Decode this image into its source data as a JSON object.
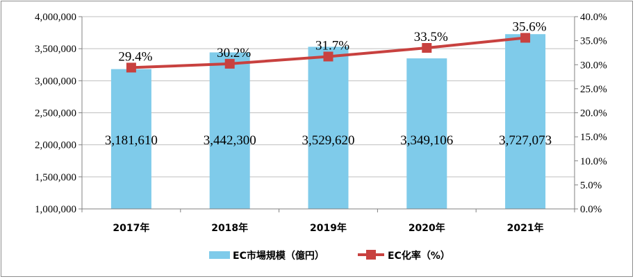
{
  "chart_data": {
    "type": "bar",
    "categories": [
      "2017年",
      "2018年",
      "2019年",
      "2020年",
      "2021年"
    ],
    "series": [
      {
        "name": "EC市場規模（億円）",
        "type": "bar",
        "axis": "left",
        "values": [
          3181610,
          3442300,
          3529620,
          3349106,
          3727073
        ],
        "labels": [
          "3,181,610",
          "3,442,300",
          "3,529,620",
          "3,349,106",
          "3,727,073"
        ],
        "color": "#7fcbea"
      },
      {
        "name": "EC化率（%）",
        "type": "line",
        "axis": "right",
        "values": [
          29.4,
          30.2,
          31.7,
          33.5,
          35.6
        ],
        "labels": [
          "29.4%",
          "30.2%",
          "31.7%",
          "33.5%",
          "35.6%"
        ],
        "color": "#c8413f"
      }
    ],
    "ylim_left": [
      1000000,
      4000000
    ],
    "yticks_left": [
      "1,000,000",
      "1,500,000",
      "2,000,000",
      "2,500,000",
      "3,000,000",
      "3,500,000",
      "4,000,000"
    ],
    "ylim_right": [
      0,
      40
    ],
    "yticks_right": [
      "0.0%",
      "5.0%",
      "10.0%",
      "15.0%",
      "20.0%",
      "25.0%",
      "30.0%",
      "35.0%",
      "40.0%"
    ],
    "grid": true,
    "legend_position": "bottom"
  }
}
